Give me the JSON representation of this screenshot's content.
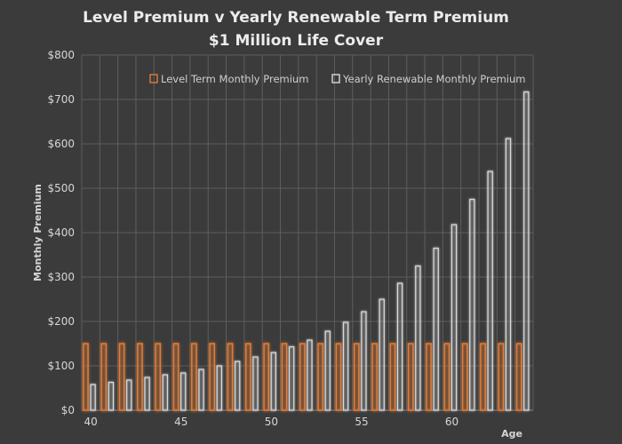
{
  "chart_data": {
    "type": "bar",
    "title": "Level Premium v Yearly Renewable Term Premium",
    "subtitle": "$1 Million Life Cover",
    "xlabel": "Age",
    "ylabel": "Monthly Premium",
    "ylim": [
      0,
      800
    ],
    "y_ticks": [
      "$0",
      "$100",
      "$200",
      "$300",
      "$400",
      "$500",
      "$600",
      "$700",
      "$800"
    ],
    "x_tick_labels": [
      "40",
      "45",
      "50",
      "55",
      "60"
    ],
    "categories": [
      40,
      41,
      42,
      43,
      44,
      45,
      46,
      47,
      48,
      49,
      50,
      51,
      52,
      53,
      54,
      55,
      56,
      57,
      58,
      59,
      60,
      61,
      62,
      63,
      64
    ],
    "series": [
      {
        "name": "Level Term Monthly Premium",
        "color": "#e07b39",
        "values": [
          150,
          150,
          150,
          150,
          150,
          150,
          150,
          150,
          150,
          150,
          150,
          150,
          150,
          150,
          150,
          150,
          150,
          150,
          150,
          150,
          150,
          150,
          150,
          150,
          150
        ]
      },
      {
        "name": "Yearly Renewable Monthly Premium",
        "color": "#d9d9d9",
        "values": [
          58,
          63,
          68,
          74,
          80,
          84,
          92,
          100,
          110,
          120,
          130,
          143,
          158,
          178,
          198,
          222,
          250,
          286,
          325,
          365,
          418,
          475,
          538,
          612,
          717
        ]
      }
    ],
    "grid": true,
    "legend_position": "top"
  }
}
